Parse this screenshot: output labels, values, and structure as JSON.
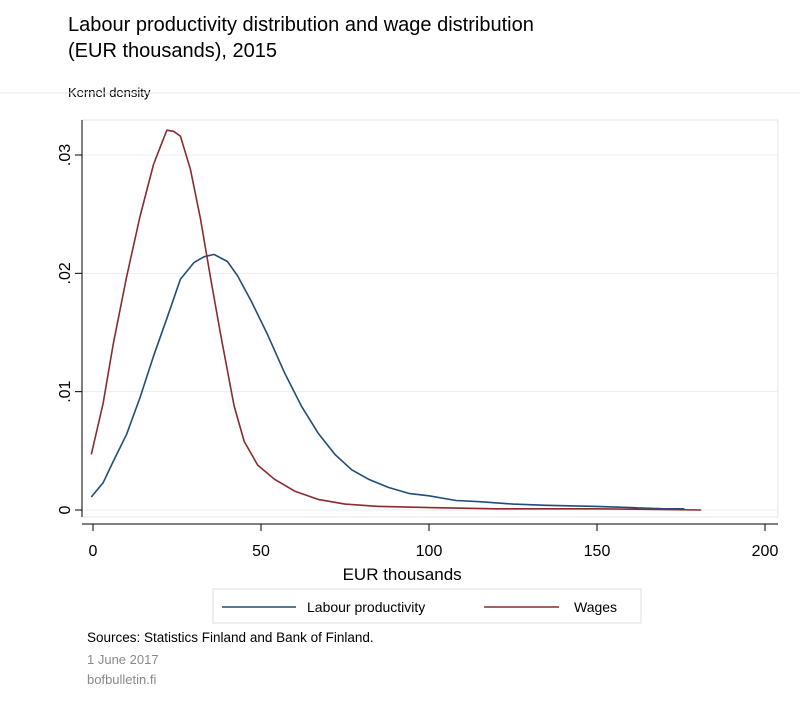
{
  "page": {
    "title_line1": "Labour productivity distribution and wage distribution",
    "title_line2": "(EUR thousands), 2015",
    "sources": "Sources: Statistics Finland and Bank of Finland.",
    "date": "1 June 2017",
    "site": "bofbulletin.fi"
  },
  "chart_data": {
    "type": "line",
    "title": "Labour productivity distribution and wage distribution (EUR thousands), 2015",
    "xlabel": "EUR thousands",
    "ylabel": "Kernel density",
    "xlim": [
      -3,
      203
    ],
    "ylim": [
      -0.0005,
      0.033
    ],
    "xticks": [
      0,
      50,
      100,
      150,
      200
    ],
    "xtick_labels": [
      "0",
      "50",
      "100",
      "150",
      "200"
    ],
    "yticks": [
      0,
      0.01,
      0.02,
      0.03
    ],
    "ytick_labels": [
      "0",
      ".01",
      ".02",
      ".03"
    ],
    "grid": true,
    "legend_position": "bottom",
    "series": [
      {
        "name": "Labour productivity",
        "color": "#1f4e79",
        "points": [
          [
            -0.5,
            0.0011
          ],
          [
            3,
            0.0023
          ],
          [
            6,
            0.0041
          ],
          [
            10,
            0.0064
          ],
          [
            14,
            0.0095
          ],
          [
            18,
            0.013
          ],
          [
            22,
            0.0162
          ],
          [
            26,
            0.0195
          ],
          [
            30,
            0.0209
          ],
          [
            33,
            0.0214
          ],
          [
            36,
            0.0216
          ],
          [
            40,
            0.021
          ],
          [
            43,
            0.0198
          ],
          [
            47,
            0.0177
          ],
          [
            52,
            0.0148
          ],
          [
            57,
            0.0116
          ],
          [
            62,
            0.0088
          ],
          [
            67,
            0.0065
          ],
          [
            72,
            0.0047
          ],
          [
            77,
            0.0034
          ],
          [
            82,
            0.0026
          ],
          [
            88,
            0.0019
          ],
          [
            94,
            0.0014
          ],
          [
            100,
            0.0012
          ],
          [
            108,
            0.0008
          ],
          [
            115,
            0.0007
          ],
          [
            125,
            0.0005
          ],
          [
            135,
            0.0004
          ],
          [
            150,
            0.0003
          ],
          [
            160,
            0.0002
          ],
          [
            170,
            0.0001
          ],
          [
            176,
            0.0001
          ]
        ]
      },
      {
        "name": "Wages",
        "color": "#8b2a2f",
        "points": [
          [
            -0.5,
            0.0047
          ],
          [
            3,
            0.009
          ],
          [
            6,
            0.014
          ],
          [
            10,
            0.0197
          ],
          [
            14,
            0.0248
          ],
          [
            18,
            0.0292
          ],
          [
            21,
            0.0314
          ],
          [
            22,
            0.0321
          ],
          [
            24,
            0.032
          ],
          [
            26,
            0.0316
          ],
          [
            29,
            0.0288
          ],
          [
            32,
            0.0246
          ],
          [
            35,
            0.0196
          ],
          [
            38,
            0.0148
          ],
          [
            42,
            0.0088
          ],
          [
            45,
            0.0058
          ],
          [
            49,
            0.0038
          ],
          [
            54,
            0.0026
          ],
          [
            60,
            0.0016
          ],
          [
            67,
            0.0009
          ],
          [
            75,
            0.0005
          ],
          [
            85,
            0.0003
          ],
          [
            100,
            0.0002
          ],
          [
            120,
            0.0001
          ],
          [
            150,
            0.0001
          ],
          [
            181,
            0.0
          ]
        ]
      }
    ]
  }
}
